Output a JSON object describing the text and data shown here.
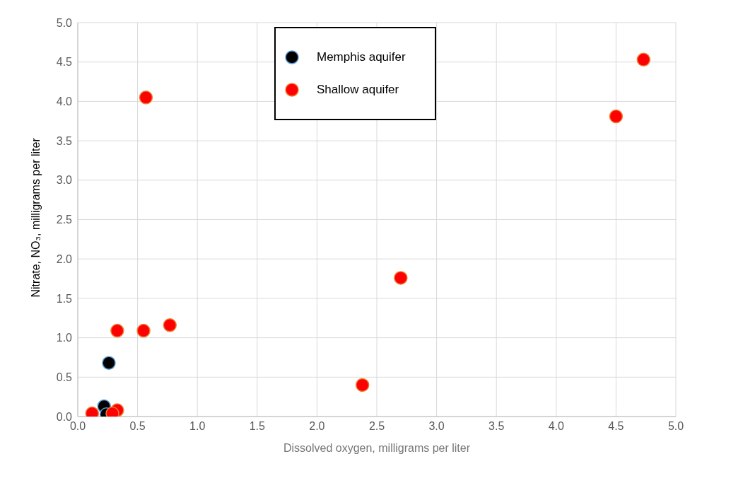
{
  "chart_data": {
    "type": "scatter",
    "xlabel": "Dissolved oxygen, milligrams per liter",
    "ylabel": "Nitrate, NO₃, milligrams per liter",
    "xlim": [
      0,
      5
    ],
    "ylim": [
      0,
      5
    ],
    "xticks": [
      {
        "value": 0,
        "label": "0.0"
      },
      {
        "value": 0.5,
        "label": "0.5"
      },
      {
        "value": 1,
        "label": "1.0"
      },
      {
        "value": 1.5,
        "label": "1.5"
      },
      {
        "value": 2,
        "label": "2.0"
      },
      {
        "value": 2.5,
        "label": "2.5"
      },
      {
        "value": 3,
        "label": "3.0"
      },
      {
        "value": 3.5,
        "label": "3.5"
      },
      {
        "value": 4,
        "label": "4.0"
      },
      {
        "value": 4.5,
        "label": "4.5"
      },
      {
        "value": 5,
        "label": "5.0"
      }
    ],
    "yticks": [
      {
        "value": 0,
        "label": "0.0"
      },
      {
        "value": 0.5,
        "label": "0.5"
      },
      {
        "value": 1,
        "label": "1.0"
      },
      {
        "value": 1.5,
        "label": "1.5"
      },
      {
        "value": 2,
        "label": "2.0"
      },
      {
        "value": 2.5,
        "label": "2.5"
      },
      {
        "value": 3,
        "label": "3.0"
      },
      {
        "value": 3.5,
        "label": "3.5"
      },
      {
        "value": 4,
        "label": "4.0"
      },
      {
        "value": 4.5,
        "label": "4.5"
      },
      {
        "value": 5,
        "label": "5.0"
      }
    ],
    "grid": true,
    "legend": "top",
    "marker": "circle",
    "series": [
      {
        "name": "Memphis aquifer",
        "color": "#000000",
        "x": [
          0.26,
          0.22,
          0.24
        ],
        "values": [
          0.68,
          0.13,
          0.03
        ]
      },
      {
        "name": "Shallow aquifer",
        "color": "#ff0000",
        "x": [
          0.12,
          0.33,
          0.29,
          0.33,
          0.55,
          0.57,
          0.77,
          2.38,
          2.7,
          4.5,
          4.73
        ],
        "values": [
          0.04,
          0.08,
          0.04,
          1.09,
          1.09,
          4.05,
          1.16,
          0.4,
          1.76,
          3.81,
          4.53
        ]
      }
    ]
  }
}
